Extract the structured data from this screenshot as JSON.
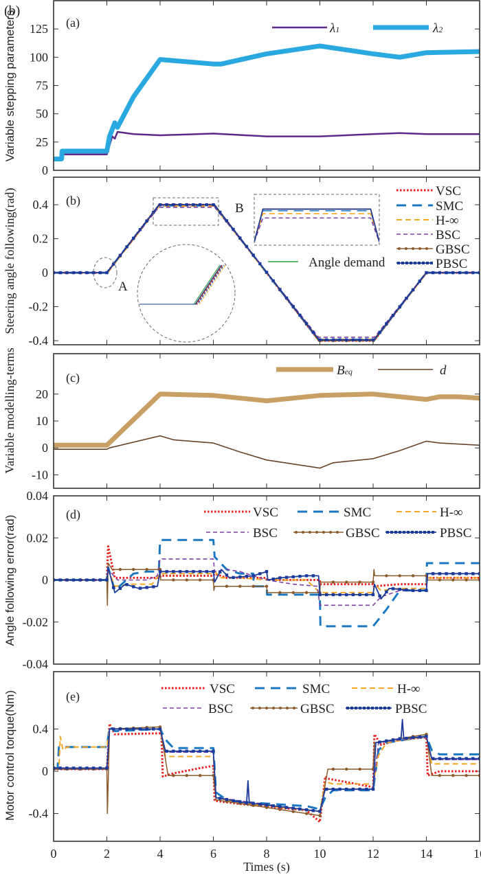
{
  "figure_label": "(b)",
  "chart_data": [
    {
      "type": "line",
      "panel_label": "(a)",
      "ylabel": "Variable stepping parameters",
      "xlim": [
        0,
        16
      ],
      "ylim": [
        0,
        150
      ],
      "xticks": [
        0,
        2,
        4,
        6,
        8,
        10,
        12,
        14,
        16
      ],
      "yticks": [
        0,
        25,
        50,
        75,
        100,
        125
      ],
      "ytick_labels": [
        "0",
        "25",
        "50",
        "75",
        "100",
        "125"
      ],
      "legend": "top-right",
      "series": [
        {
          "name": "λ1",
          "name_main": "λ",
          "name_sub": "1",
          "color": "#5b2a86",
          "style": "solid-thin",
          "x": [
            0,
            0.3,
            0.32,
            2.0,
            2.1,
            2.2,
            2.3,
            2.4,
            3.0,
            4.0,
            6.0,
            8.0,
            10.0,
            12.0,
            13.0,
            14.0,
            16.0
          ],
          "y": [
            9,
            9,
            14,
            14,
            22,
            30,
            28,
            34,
            32,
            31,
            32.5,
            30,
            30,
            32,
            33,
            32,
            32
          ]
        },
        {
          "name": "λ2",
          "name_main": "λ",
          "name_sub": "2",
          "color": "#2aa8e0",
          "style": "solid-thick",
          "x": [
            0,
            0.3,
            0.32,
            2.0,
            2.1,
            2.3,
            2.4,
            3.0,
            4.0,
            6.0,
            6.3,
            8.0,
            10.0,
            12.0,
            13.0,
            14.0,
            16.0
          ],
          "y": [
            10,
            10,
            17,
            17,
            30,
            42,
            38,
            65,
            98,
            94,
            94,
            103,
            110,
            103,
            100,
            104,
            105
          ]
        }
      ]
    },
    {
      "type": "line",
      "panel_label": "(b)",
      "ylabel": "Steering angle following(rad)",
      "xlim": [
        0,
        16
      ],
      "ylim": [
        -0.424,
        0.562
      ],
      "xticks": [
        0,
        2,
        4,
        6,
        8,
        10,
        12,
        14,
        16
      ],
      "yticks": [
        -0.4,
        -0.2,
        0,
        0.2,
        0.4
      ],
      "ytick_labels": [
        "-0.4",
        "-0.2",
        "0",
        "0.2",
        "0.4"
      ],
      "legend": "right",
      "annotations": [
        "A",
        "B"
      ],
      "series": [
        {
          "name": "VSC",
          "color": "#e8201f",
          "style": "dotted",
          "x": [
            0,
            2,
            3.97,
            6.03,
            9.97,
            12.03,
            14,
            16
          ],
          "y": [
            0,
            0,
            0.4,
            0.4,
            -0.4,
            -0.4,
            0,
            0
          ]
        },
        {
          "name": "SMC",
          "color": "#1a78c2",
          "style": "longdash",
          "x": [
            0,
            2,
            3.96,
            6.04,
            9.96,
            12.04,
            14,
            16
          ],
          "y": [
            0,
            0,
            0.395,
            0.395,
            -0.395,
            -0.395,
            0,
            0
          ]
        },
        {
          "name": "H-∞",
          "color": "#f5a623",
          "style": "dashed",
          "x": [
            0,
            2.03,
            3.97,
            6.03,
            9.97,
            12.03,
            14.02,
            16
          ],
          "y": [
            0,
            0,
            0.392,
            0.392,
            -0.392,
            -0.392,
            0,
            0
          ]
        },
        {
          "name": "BSC",
          "color": "#7b3fa6",
          "style": "shortdash",
          "x": [
            0,
            2,
            3.95,
            6.05,
            9.95,
            12.05,
            14,
            16
          ],
          "y": [
            0,
            0,
            0.385,
            0.385,
            -0.38,
            -0.38,
            0,
            0
          ]
        },
        {
          "name": "GBSC",
          "color": "#8b5a2b",
          "style": "dotmarker",
          "x": [
            0,
            2.02,
            3.98,
            6.02,
            9.98,
            12.02,
            14.01,
            16
          ],
          "y": [
            0,
            0,
            0.4,
            0.4,
            -0.4,
            -0.4,
            0,
            0
          ]
        },
        {
          "name": "PBSC",
          "color": "#1b3a9c",
          "style": "squaremarker",
          "x": [
            0,
            2,
            3.97,
            6.03,
            9.97,
            12.03,
            14,
            16
          ],
          "y": [
            0,
            0,
            0.4,
            0.4,
            -0.395,
            -0.395,
            0,
            0
          ]
        },
        {
          "name": "Angle demand",
          "color": "#2a9d3a",
          "style": "solid",
          "x": [
            0,
            2,
            3.95,
            6.05,
            9.95,
            12.05,
            14,
            16
          ],
          "y": [
            0,
            0,
            0.4,
            0.4,
            -0.4,
            -0.4,
            0,
            0
          ]
        }
      ]
    },
    {
      "type": "line",
      "panel_label": "(c)",
      "ylabel": "Variable modelling-terms",
      "xlim": [
        0,
        16
      ],
      "ylim": [
        -15,
        35
      ],
      "xticks": [
        0,
        2,
        4,
        6,
        8,
        10,
        12,
        14,
        16
      ],
      "yticks": [
        -10,
        0,
        10,
        20
      ],
      "ytick_labels": [
        "-10",
        "0",
        "10",
        "20"
      ],
      "legend": "top-right",
      "series": [
        {
          "name": "Beq",
          "name_main": "B",
          "name_sub": "eq",
          "color": "#c8a065",
          "style": "solid-thick",
          "x": [
            0,
            2,
            4,
            6,
            8,
            10,
            12,
            14,
            14.5,
            15.2,
            16
          ],
          "y": [
            1,
            1,
            20,
            19.5,
            17.5,
            19.5,
            20,
            18,
            19,
            19,
            18.5
          ]
        },
        {
          "name": "d",
          "name_main": "d",
          "name_sub": "",
          "color": "#6b4226",
          "style": "solid",
          "x": [
            0,
            2,
            2.1,
            4,
            4.5,
            6,
            7,
            8,
            10,
            10.5,
            12,
            13,
            14,
            14.5,
            16
          ],
          "y": [
            -0.5,
            -0.5,
            0,
            4.5,
            3,
            1.8,
            -1.5,
            -4.5,
            -7.5,
            -5.5,
            -4,
            -1,
            2.5,
            1.8,
            1
          ]
        }
      ]
    },
    {
      "type": "line",
      "panel_label": "(d)",
      "ylabel": "Angle following error(rad)",
      "xlim": [
        0,
        16
      ],
      "ylim": [
        -0.04,
        0.04
      ],
      "xticks": [
        0,
        2,
        4,
        6,
        8,
        10,
        12,
        14,
        16
      ],
      "yticks": [
        -0.04,
        -0.02,
        0,
        0.02,
        0.04
      ],
      "ytick_labels": [
        "-0.04",
        "-0.02",
        "0",
        "0.02",
        "0.04"
      ],
      "legend": "top-right",
      "series": [
        {
          "name": "VSC",
          "color": "#e8201f",
          "style": "dotted",
          "x": [
            0,
            2,
            2.05,
            2.3,
            4,
            4.02,
            6,
            6.05,
            6.5,
            8,
            8.02,
            10,
            10.02,
            12,
            12.02,
            13,
            14,
            14.02,
            16
          ],
          "y": [
            0,
            0,
            0.016,
            0.001,
            0.001,
            0.002,
            0.002,
            0.003,
            0.001,
            0.001,
            0,
            0,
            -0.002,
            -0.002,
            -0.003,
            -0.002,
            -0.002,
            0.001,
            0.001
          ]
        },
        {
          "name": "SMC",
          "color": "#1a78c2",
          "style": "longdash",
          "x": [
            0,
            2,
            2.05,
            2.3,
            3,
            3.5,
            3.95,
            4,
            6,
            6.05,
            6.5,
            7,
            7.5,
            7.52,
            8,
            8.02,
            10,
            10.02,
            12,
            12.5,
            13,
            14,
            14.02,
            16
          ],
          "y": [
            0,
            0,
            0.006,
            -0.005,
            0.003,
            0.004,
            0.004,
            0.019,
            0.019,
            0.011,
            0.005,
            0.003,
            0.003,
            -0.003,
            -0.003,
            -0.007,
            -0.007,
            -0.022,
            -0.022,
            -0.014,
            -0.005,
            -0.005,
            0.008,
            0.008
          ]
        },
        {
          "name": "H-∞",
          "color": "#f5a623",
          "style": "dashed",
          "x": [
            0,
            2,
            2.05,
            2.3,
            3,
            3.7,
            4,
            6,
            6.05,
            6.3,
            7,
            8,
            9.5,
            10,
            12,
            12.05,
            12.3,
            13,
            14,
            14.02,
            16
          ],
          "y": [
            0,
            0,
            0.005,
            -0.003,
            -0.002,
            -0.002,
            0.003,
            0.003,
            0.004,
            0.001,
            0.001,
            0,
            0,
            -0.006,
            -0.006,
            -0.002,
            -0.005,
            -0.004,
            -0.004,
            0.001,
            0.001
          ]
        },
        {
          "name": "BSC",
          "color": "#7b3fa6",
          "style": "shortdash",
          "x": [
            0,
            2,
            2.05,
            2.4,
            3.5,
            3.9,
            4,
            6,
            6.05,
            6.5,
            7,
            8,
            9,
            9.9,
            10,
            12,
            12.3,
            13,
            14,
            14.02,
            16
          ],
          "y": [
            0,
            0,
            0.005,
            0,
            0,
            0.002,
            0.01,
            0.01,
            0.004,
            0.005,
            0.004,
            0,
            -0.002,
            -0.003,
            -0.012,
            -0.012,
            -0.008,
            -0.005,
            -0.005,
            0.003,
            0.003
          ]
        },
        {
          "name": "GBSC",
          "color": "#8b5a2b",
          "style": "dotmarker",
          "x": [
            0,
            2,
            2.02,
            2.05,
            2.2,
            4,
            4.02,
            6,
            6.02,
            6.05,
            8,
            8.02,
            10,
            10.02,
            12,
            12.03,
            12.06,
            14,
            14.02,
            16
          ],
          "y": [
            0,
            0,
            -0.012,
            0.008,
            0.005,
            0.005,
            0,
            0,
            -0.005,
            -0.003,
            -0.003,
            -0.006,
            -0.006,
            -0.001,
            -0.001,
            0.005,
            0.002,
            0.002,
            0,
            0
          ]
        },
        {
          "name": "PBSC",
          "color": "#1b3a9c",
          "style": "squaremarker",
          "x": [
            0,
            2,
            2.05,
            2.3,
            2.7,
            3.2,
            3.9,
            4,
            6,
            6.05,
            6.3,
            6.6,
            7.5,
            8,
            8.05,
            8.5,
            9.5,
            9.95,
            10,
            12,
            12.05,
            12.3,
            12.6,
            13.5,
            14,
            14.05,
            16
          ],
          "y": [
            0,
            0,
            0.006,
            -0.006,
            -0.002,
            -0.004,
            -0.003,
            0.004,
            0.004,
            -0.001,
            0.005,
            0.001,
            0.002,
            0.004,
            0,
            0.001,
            0.002,
            0.002,
            -0.007,
            -0.007,
            -0.002,
            -0.009,
            -0.004,
            -0.005,
            -0.005,
            0.003,
            0.003
          ]
        }
      ]
    },
    {
      "type": "line",
      "panel_label": "(e)",
      "ylabel": "Motor control torque(Nm)",
      "xlabel": "Times (s)",
      "xlim": [
        0,
        16
      ],
      "ylim": [
        -0.663,
        0.943
      ],
      "xticks": [
        0,
        2,
        4,
        6,
        8,
        10,
        12,
        14,
        16
      ],
      "xtick_labels": [
        "0",
        "2",
        "4",
        "6",
        "8",
        "10",
        "12",
        "14",
        "16"
      ],
      "yticks": [
        -0.4,
        0,
        0.4
      ],
      "ytick_labels": [
        "-0.4",
        "0",
        "0.4"
      ],
      "legend": "top",
      "series": [
        {
          "name": "VSC",
          "color": "#e8201f",
          "style": "dotted",
          "x": [
            0,
            2,
            2.1,
            2.3,
            4,
            4.05,
            4.1,
            4.5,
            5.5,
            6,
            6.05,
            7,
            9.5,
            10,
            10.2,
            10.3,
            12,
            12.05,
            12.3,
            13,
            14,
            14.05,
            14.5,
            16
          ],
          "y": [
            0.02,
            0.02,
            0.45,
            0.35,
            0.36,
            0.38,
            -0.05,
            -0.02,
            0.03,
            0.05,
            -0.28,
            -0.31,
            -0.37,
            -0.48,
            -0.05,
            -0.07,
            -0.15,
            0.35,
            0.25,
            0.3,
            0.32,
            -0.04,
            0,
            0
          ]
        },
        {
          "name": "SMC",
          "color": "#1a78c2",
          "style": "longdash",
          "x": [
            0,
            0.15,
            0.2,
            2,
            2.1,
            2.3,
            4,
            4.2,
            4.5,
            6,
            6.1,
            6.5,
            7,
            9.5,
            10,
            10.2,
            10.5,
            12,
            12.2,
            12.5,
            14,
            14.2,
            14.5,
            16
          ],
          "y": [
            0.03,
            0.03,
            0.23,
            0.23,
            0.42,
            0.38,
            0.4,
            0.3,
            0.22,
            0.22,
            -0.2,
            -0.27,
            -0.29,
            -0.33,
            -0.36,
            -0.25,
            -0.18,
            -0.18,
            0.2,
            0.27,
            0.33,
            0.2,
            0.16,
            0.16
          ]
        },
        {
          "name": "H-∞",
          "color": "#f5a623",
          "style": "dashed",
          "x": [
            0,
            0.2,
            0.25,
            0.35,
            0.5,
            2,
            2.1,
            4,
            4.2,
            6,
            6.1,
            7,
            10,
            10.2,
            10.5,
            12,
            12.2,
            12.5,
            14,
            14.2,
            16
          ],
          "y": [
            0.03,
            0.03,
            0.33,
            0.2,
            0.23,
            0.23,
            0.4,
            0.4,
            0.14,
            0.14,
            -0.25,
            -0.3,
            -0.38,
            -0.1,
            -0.12,
            -0.12,
            0.15,
            0.27,
            0.33,
            0.07,
            0.07
          ]
        },
        {
          "name": "BSC",
          "color": "#7b3fa6",
          "style": "shortdash",
          "x": [
            0,
            2,
            2.1,
            4,
            4.2,
            6,
            6.1,
            10,
            10.2,
            12,
            12.2,
            14,
            14.2,
            16
          ],
          "y": [
            0.02,
            0.02,
            0.4,
            0.4,
            0.18,
            0.18,
            -0.25,
            -0.38,
            -0.17,
            -0.17,
            0.27,
            0.33,
            0.11,
            0.11
          ]
        },
        {
          "name": "GBSC",
          "color": "#8b5a2b",
          "style": "dotmarker",
          "x": [
            0,
            2,
            2.02,
            2.1,
            4,
            4.3,
            6,
            6.1,
            10,
            10.3,
            12,
            12.05,
            14,
            14.2,
            16
          ],
          "y": [
            0.02,
            0.02,
            -0.4,
            0.4,
            0.42,
            -0.04,
            -0.04,
            -0.27,
            -0.42,
            0.02,
            0.02,
            0.27,
            0.35,
            -0.04,
            -0.04
          ]
        },
        {
          "name": "PBSC",
          "color": "#1b3a9c",
          "style": "squaremarker",
          "x": [
            0,
            2,
            2.1,
            4,
            4.2,
            6,
            6.1,
            7.25,
            7.3,
            7.35,
            10,
            10.2,
            12,
            12.1,
            13.05,
            13.1,
            13.15,
            14,
            14.2,
            16
          ],
          "y": [
            0.03,
            0.03,
            0.4,
            0.4,
            0.19,
            0.19,
            -0.25,
            -0.3,
            -0.09,
            -0.3,
            -0.38,
            -0.17,
            -0.17,
            0.27,
            0.31,
            0.49,
            0.31,
            0.33,
            0.12,
            0.12
          ]
        }
      ]
    }
  ]
}
